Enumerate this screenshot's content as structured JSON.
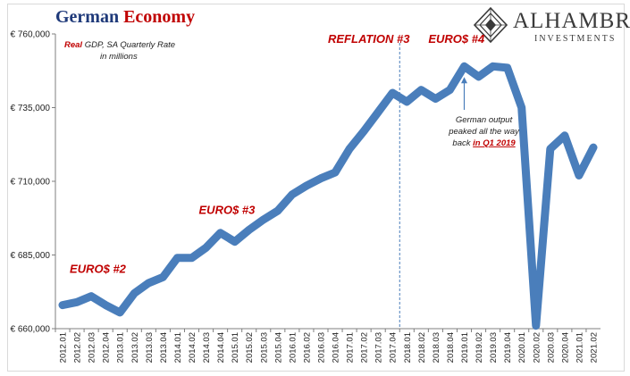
{
  "header": {
    "title_part1": "German",
    "title_part2": "Economy",
    "subtitle_red": "Real",
    "subtitle_rest": " GDP, SA Quarterly Rate",
    "subtitle_line2": "in millions"
  },
  "logo": {
    "name": "ALHAMBRA",
    "sub": "INVESTMENTS"
  },
  "colors": {
    "line": "#4a7ebb",
    "annotation": "#c00000",
    "title_blue": "#1f3a7a",
    "divider": "#4a7ebb"
  },
  "chart_data": {
    "type": "line",
    "title": "German Economy",
    "ylim": [
      660000,
      760000
    ],
    "yticks": [
      660000,
      685000,
      710000,
      735000,
      760000
    ],
    "ytick_labels": [
      "€ 660,000",
      "€ 685,000",
      "€ 710,000",
      "€ 735,000",
      "€ 760,000"
    ],
    "categories": [
      "2012.01",
      "2012.02",
      "2012.03",
      "2012.04",
      "2013.01",
      "2013.02",
      "2013.03",
      "2013.04",
      "2014.01",
      "2014.02",
      "2014.03",
      "2014.04",
      "2015.01",
      "2015.02",
      "2015.03",
      "2015.04",
      "2016.01",
      "2016.02",
      "2016.03",
      "2016.04",
      "2017.01",
      "2017.02",
      "2017.03",
      "2017.04",
      "2018.01",
      "2018.02",
      "2018.03",
      "2018.04",
      "2019.01",
      "2019.02",
      "2019.03",
      "2019.04",
      "2020.01",
      "2020.02",
      "2020.03",
      "2020.04",
      "2021.01",
      "2021.02"
    ],
    "series": [
      {
        "values": [
          668000,
          669000,
          671000,
          668000,
          665500,
          672000,
          675500,
          677500,
          684000,
          684000,
          687500,
          692500,
          689500,
          693500,
          697000,
          700000,
          705500,
          708500,
          711000,
          713000,
          721000,
          727000,
          733500,
          740000,
          737000,
          741000,
          738000,
          741000,
          749000,
          745500,
          749000,
          748500,
          735000,
          661000,
          721000,
          725500,
          712000,
          721500
        ]
      }
    ],
    "divider_after": "2017.04",
    "annotations": [
      {
        "text": "EURO$ #2",
        "x": "2012.02",
        "y": 679000,
        "style": "label"
      },
      {
        "text": "EURO$ #3",
        "x": "2014.03",
        "y": 699000,
        "style": "label"
      },
      {
        "text": "REFLATION #3",
        "x": "2016.04",
        "y": 757000,
        "style": "label"
      },
      {
        "text": "EURO$ #4",
        "x": "2018.03",
        "y": 757000,
        "style": "label"
      },
      {
        "text_line1": "German output",
        "text_line2": "peaked all the way",
        "text_line3_prefix": "back ",
        "text_line3_link": "in Q1 2019",
        "x": "2019.02",
        "y": 730000,
        "arrow_to": "2019.01",
        "style": "note"
      }
    ],
    "grid": false
  }
}
